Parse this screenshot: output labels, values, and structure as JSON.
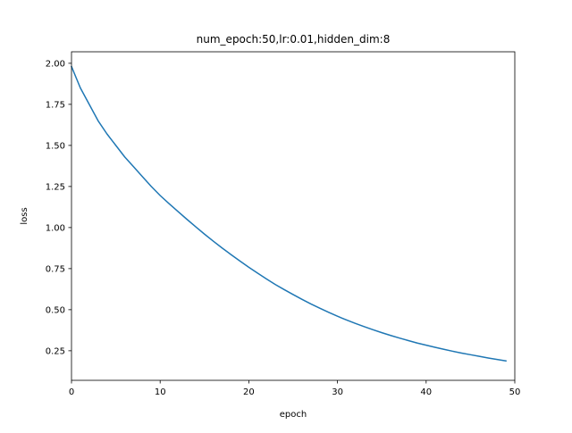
{
  "chart_data": {
    "type": "line",
    "title": "num_epoch:50,lr:0.01,hidden_dim:8",
    "xlabel": "epoch",
    "ylabel": "loss",
    "xlim": [
      0,
      50
    ],
    "ylim": [
      0.07,
      2.07
    ],
    "grid": false,
    "x_ticks": [
      0,
      10,
      20,
      30,
      40,
      50
    ],
    "y_ticks": [
      0.25,
      0.5,
      0.75,
      1.0,
      1.25,
      1.5,
      1.75,
      2.0
    ],
    "x_tick_labels": [
      "0",
      "10",
      "20",
      "30",
      "40",
      "50"
    ],
    "y_tick_labels": [
      "0.25",
      "0.50",
      "0.75",
      "1.00",
      "1.25",
      "1.50",
      "1.75",
      "2.00"
    ],
    "series": [
      {
        "color": "#1f77b4",
        "x": [
          0,
          1,
          2,
          3,
          4,
          5,
          6,
          7,
          8,
          9,
          10,
          11,
          12,
          13,
          14,
          15,
          16,
          17,
          18,
          19,
          20,
          21,
          22,
          23,
          24,
          25,
          26,
          27,
          28,
          29,
          30,
          31,
          32,
          33,
          34,
          35,
          36,
          37,
          38,
          39,
          40,
          41,
          42,
          43,
          44,
          45,
          46,
          47,
          48,
          49
        ],
        "y": [
          1.98,
          1.85,
          1.75,
          1.65,
          1.57,
          1.5,
          1.43,
          1.37,
          1.31,
          1.25,
          1.195,
          1.146,
          1.098,
          1.051,
          1.005,
          0.96,
          0.917,
          0.875,
          0.835,
          0.796,
          0.758,
          0.722,
          0.687,
          0.653,
          0.622,
          0.592,
          0.563,
          0.535,
          0.509,
          0.484,
          0.46,
          0.438,
          0.417,
          0.397,
          0.378,
          0.36,
          0.343,
          0.327,
          0.312,
          0.297,
          0.284,
          0.271,
          0.259,
          0.247,
          0.236,
          0.226,
          0.216,
          0.206,
          0.197,
          0.188
        ]
      }
    ]
  }
}
